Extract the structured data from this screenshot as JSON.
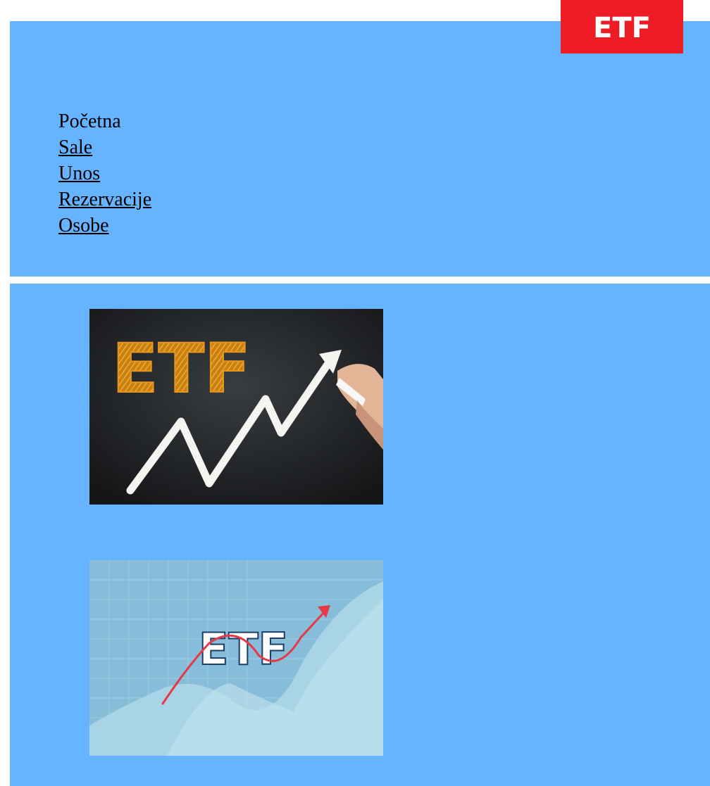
{
  "logo": {
    "text": "ETF",
    "bg_color": "#ee1c25"
  },
  "nav": {
    "items": [
      {
        "label": "Početna",
        "link": false
      },
      {
        "label": "Sale",
        "link": true
      },
      {
        "label": "Unos",
        "link": true
      },
      {
        "label": "Rezervacije",
        "link": true
      },
      {
        "label": "Osobe",
        "link": true
      }
    ]
  },
  "images": [
    {
      "text": "ETF",
      "description_icon": "chalkboard-etf-arrow-icon"
    },
    {
      "text": "ETF",
      "description_icon": "chart-etf-arrow-icon"
    }
  ],
  "colors": {
    "background": "#66b3ff",
    "logo": "#ee1c25"
  }
}
